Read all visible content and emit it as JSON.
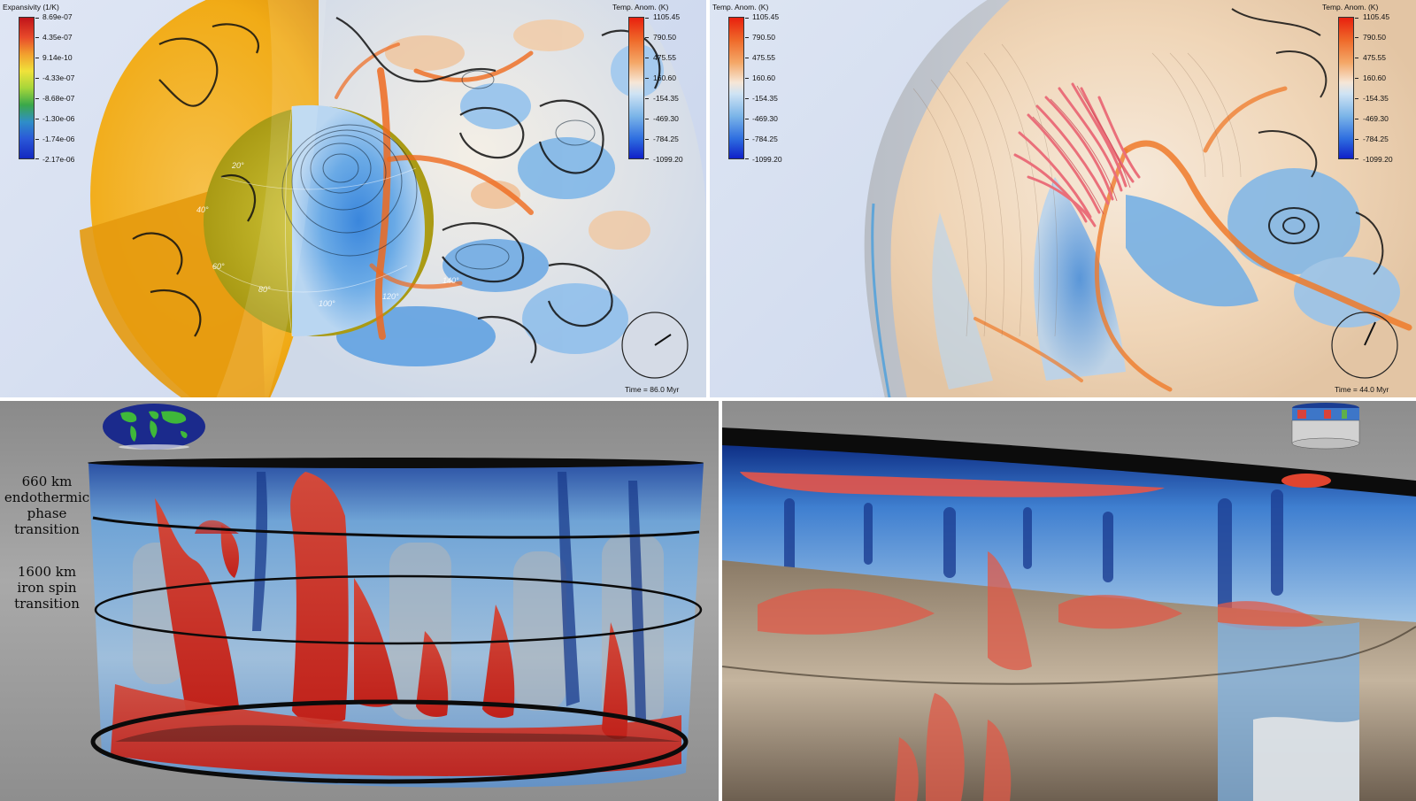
{
  "panels": {
    "top_left": {
      "colorbar_left": {
        "title": "Expansivity (1/K)",
        "ticks": [
          "8.69e-07",
          "4.35e-07",
          "9.14e-10",
          "-4.33e-07",
          "-8.68e-07",
          "-1.30e-06",
          "-1.74e-06",
          "-2.17e-06"
        ]
      },
      "colorbar_right": {
        "title": "Temp. Anom. (K)",
        "ticks": [
          "1105.45",
          "790.50",
          "475.55",
          "160.60",
          "-154.35",
          "-469.30",
          "-784.25",
          "-1099.20"
        ]
      },
      "angle_labels": [
        "20°",
        "40°",
        "60°",
        "80°",
        "100°",
        "120°",
        "140°"
      ],
      "time": "Time = 86.0 Myr"
    },
    "top_right": {
      "colorbar_left": {
        "title": "Temp. Anom. (K)",
        "ticks": [
          "1105.45",
          "790.50",
          "475.55",
          "160.60",
          "-154.35",
          "-469.30",
          "-784.25",
          "-1099.20"
        ]
      },
      "colorbar_right": {
        "title": "Temp. Anom. (K)",
        "ticks": [
          "1105.45",
          "790.50",
          "475.55",
          "160.60",
          "-154.35",
          "-469.30",
          "-784.25",
          "-1099.20"
        ]
      },
      "time": "Time = 44.0 Myr"
    },
    "bottom_left": {
      "label_660": [
        "660 km",
        "endothermic",
        "phase",
        "transition"
      ],
      "label_1600": [
        "1600 km",
        "iron spin",
        "transition"
      ]
    }
  },
  "colors": {
    "hot": "#e8321e",
    "warm": "#f4a25a",
    "neutral": "#f3eee6",
    "cool": "#78b4e6",
    "cold": "#1a3fd6",
    "expansivity_high": "#e31a1c",
    "expansivity_mid": "#4caf3c",
    "expansivity_low": "#1d3fd0",
    "orange_shell": "#f2ad1c"
  },
  "icons": {
    "earth_map": "world-map-icon",
    "time_dial": "clock-dial-icon",
    "minimap": "cylinder-minimap-icon"
  }
}
